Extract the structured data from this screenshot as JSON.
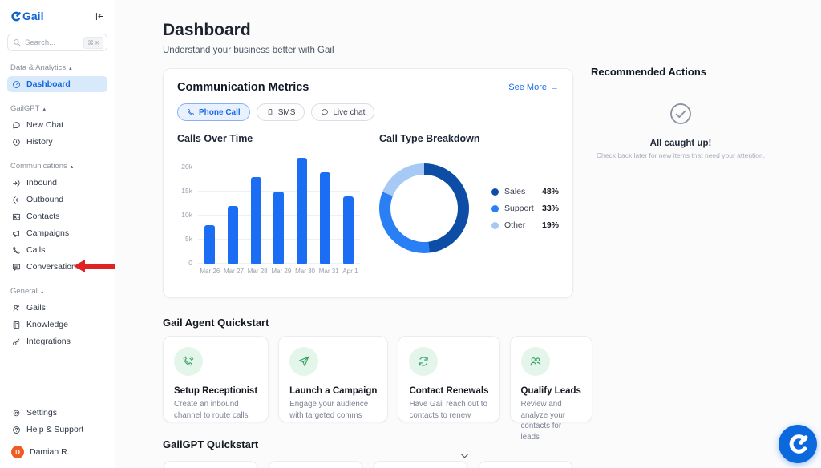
{
  "app": {
    "logo_text": "Gail",
    "accent_color": "#1a6ce8"
  },
  "sidebar": {
    "search": {
      "placeholder": "Search...",
      "shortcut": "⌘ K"
    },
    "sections": [
      {
        "label": "Data & Analytics",
        "items": [
          {
            "label": "Dashboard",
            "icon": "dashboard",
            "active": true
          }
        ]
      },
      {
        "label": "GailGPT",
        "items": [
          {
            "label": "New Chat",
            "icon": "chat"
          },
          {
            "label": "History",
            "icon": "history"
          }
        ]
      },
      {
        "label": "Communications",
        "items": [
          {
            "label": "Inbound",
            "icon": "inbound"
          },
          {
            "label": "Outbound",
            "icon": "outbound"
          },
          {
            "label": "Contacts",
            "icon": "contacts"
          },
          {
            "label": "Campaigns",
            "icon": "campaigns"
          },
          {
            "label": "Calls",
            "icon": "phone"
          },
          {
            "label": "Conversations",
            "icon": "conversation"
          }
        ]
      },
      {
        "label": "General",
        "items": [
          {
            "label": "Gails",
            "icon": "agent"
          },
          {
            "label": "Knowledge",
            "icon": "book"
          },
          {
            "label": "Integrations",
            "icon": "key"
          }
        ]
      }
    ],
    "footer_items": [
      {
        "label": "Settings",
        "icon": "gear"
      },
      {
        "label": "Help & Support",
        "icon": "help"
      }
    ],
    "user": {
      "name": "Damian R.",
      "initial": "D",
      "avatar_color": "#ee5c24"
    }
  },
  "header": {
    "title": "Dashboard",
    "subtitle": "Understand your business better with Gail"
  },
  "metrics_card": {
    "title": "Communication Metrics",
    "see_more": {
      "label": "See More",
      "arrow": "→"
    },
    "tabs": [
      {
        "label": "Phone Call",
        "icon": "phone",
        "active": true
      },
      {
        "label": "SMS",
        "icon": "sms-device",
        "active": false
      },
      {
        "label": "Live chat",
        "icon": "chat-circle",
        "active": false
      }
    ]
  },
  "chart_data": [
    {
      "type": "bar",
      "title": "Calls Over Time",
      "categories": [
        "Mar 26",
        "Mar 27",
        "Mar 28",
        "Mar 29",
        "Mar 30",
        "Mar 31",
        "Apr 1"
      ],
      "values": [
        8000,
        12000,
        18000,
        15000,
        22000,
        19000,
        14000
      ],
      "xlabel": "",
      "ylabel": "",
      "ylim": [
        0,
        22000
      ],
      "yticks": [
        0,
        5000,
        10000,
        15000,
        20000
      ],
      "ytick_labels": [
        "0",
        "5k",
        "10k",
        "15k",
        "20k"
      ],
      "bar_color": "#1b6ef3",
      "grid": true,
      "legend": false
    },
    {
      "type": "pie",
      "title": "Call Type Breakdown",
      "donut": true,
      "series": [
        {
          "name": "Sales",
          "value": 48
        },
        {
          "name": "Support",
          "value": 33
        },
        {
          "name": "Other",
          "value": 19
        }
      ],
      "unit": "%",
      "colors": [
        "#0d4da5",
        "#2b7ff5",
        "#a6c9f6"
      ],
      "legend_position": "right"
    }
  ],
  "recommended": {
    "title": "Recommended Actions",
    "status_title": "All caught up!",
    "status_subtitle": "Check back later for new items that need your attention."
  },
  "agent_quickstart": {
    "title": "Gail Agent Quickstart",
    "cards": [
      {
        "title": "Setup Receptionist",
        "description": "Create an inbound channel to route calls",
        "icon": "phone-call"
      },
      {
        "title": "Launch a Campaign",
        "description": "Engage your audience with targeted comms",
        "icon": "send"
      },
      {
        "title": "Contact Renewals",
        "description": "Have Gail reach out to contacts to renew",
        "icon": "refresh"
      },
      {
        "title": "Qualify Leads",
        "description": "Review and analyze your contacts for leads",
        "icon": "users"
      }
    ]
  },
  "gpt_quickstart": {
    "title": "GailGPT Quickstart",
    "placeholder_cards": 4
  },
  "annotation": {
    "type": "arrow",
    "points_to": "Conversations",
    "color": "#df2222"
  }
}
